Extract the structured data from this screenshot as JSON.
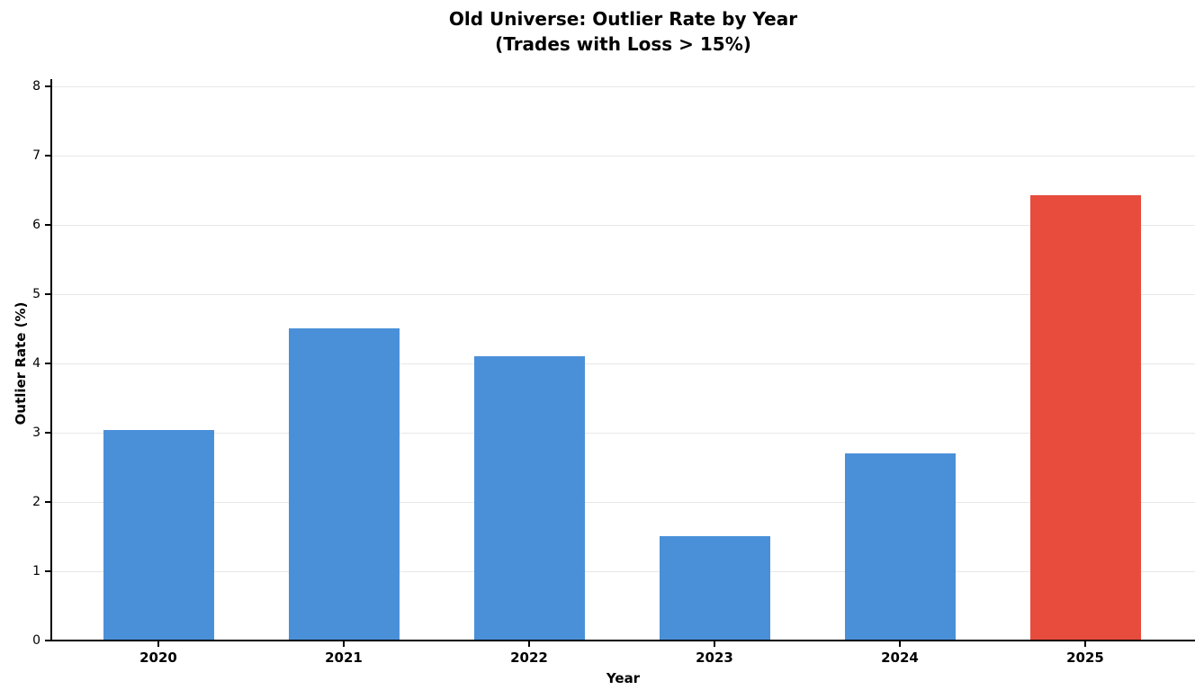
{
  "chart_data": {
    "type": "bar",
    "title": "Old Universe: Outlier Rate by Year",
    "subtitle": "(Trades with Loss > 15%)",
    "xlabel": "Year",
    "ylabel": "Outlier Rate (%)",
    "categories": [
      "2020",
      "2021",
      "2022",
      "2023",
      "2024",
      "2025"
    ],
    "values": [
      3.04,
      4.5,
      4.1,
      1.5,
      2.7,
      6.43
    ],
    "bar_colors": [
      "#4a90d9",
      "#4a90d9",
      "#4a90d9",
      "#4a90d9",
      "#4a90d9",
      "#e74c3c"
    ],
    "highlight_category": "2025",
    "ylim": [
      0,
      8
    ],
    "yticks": [
      0,
      1,
      2,
      3,
      4,
      5,
      6,
      7,
      8
    ],
    "grid": true,
    "grid_axis": "y",
    "legend_position": "none",
    "colors": {
      "default_bar": "#4a90d9",
      "highlight_bar": "#e74c3c",
      "grid": "#e8e8e8",
      "axis": "#000000",
      "background": "#ffffff"
    }
  }
}
